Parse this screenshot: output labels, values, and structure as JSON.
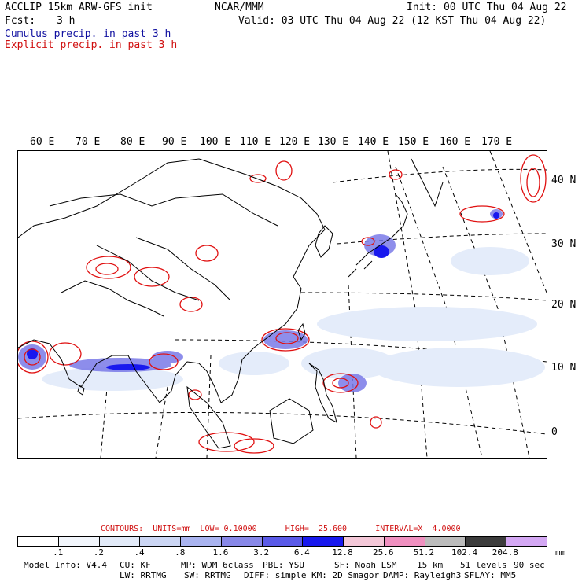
{
  "header": {
    "model_line": "ACCLIP 15km ARW-GFS init",
    "fcst_label": "Fcst:",
    "fcst_value": "3 h",
    "center": "NCAR/MMM",
    "init": "Init: 00 UTC Thu 04 Aug 22",
    "valid": "Valid: 03 UTC Thu 04 Aug 22 (12 KST Thu 04 Aug 22)",
    "cumulus_label": "Cumulus precip. in past 3 h",
    "explicit_label": "Explicit precip. in past 3 h"
  },
  "colors": {
    "cumulus": "#1010a0",
    "explicit": "#d01010",
    "coast": "#000000",
    "grid": "#000000"
  },
  "lon_labels": [
    "60 E",
    "70 E",
    "80 E",
    "90 E",
    "100 E",
    "110 E",
    "120 E",
    "130 E",
    "140 E",
    "150 E",
    "160 E",
    "170 E"
  ],
  "lat_labels": [
    "40 N",
    "30 N",
    "20 N",
    "10 N",
    "0"
  ],
  "contours": "CONTOURS:  UNITS=mm  LOW= 0.10000      HIGH=  25.600      INTERVAL=X  4.0000",
  "colorbar": {
    "labels": [
      ".1",
      ".2",
      ".4",
      ".8",
      "1.6",
      "3.2",
      "6.4",
      "12.8",
      "25.6",
      "51.2",
      "102.4",
      "204.8"
    ],
    "unit": "mm",
    "swatches": [
      "#ffffff",
      "#f2f6fc",
      "#e2eaf8",
      "#ccd6f4",
      "#aab4f0",
      "#8888e8",
      "#5a5ae8",
      "#1818ee",
      "#f4c8d8",
      "#f090c0",
      "#bcbcbc",
      "#3c3c3c",
      "#d4a8f4"
    ]
  },
  "footer": {
    "line1": [
      "Model Info: V4.4",
      "CU: KF",
      "MP: WDM 6class",
      "PBL: YSU",
      "SF: Noah LSM",
      "15 km",
      "51 levels",
      "90 sec"
    ],
    "line2": [
      "LW: RRTMG",
      "SW: RRTMG",
      "DIFF: simple",
      "KM: 2D Smagor",
      "DAMP: Rayleigh3",
      "SFLAY: MM5"
    ]
  }
}
